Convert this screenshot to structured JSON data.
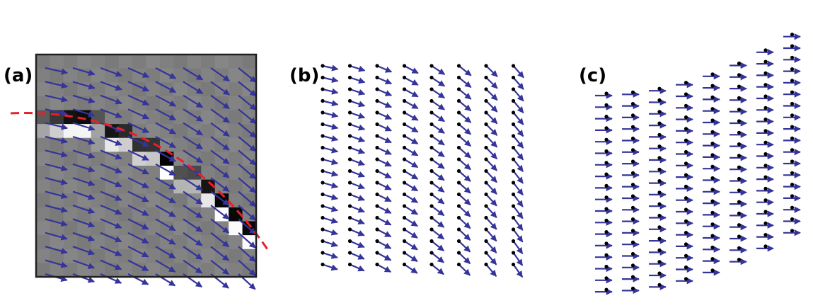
{
  "panels": [
    {
      "label": "(a)",
      "description_id": "gradient-field-on-image"
    },
    {
      "label": "(b)",
      "description_id": "vector-grid"
    },
    {
      "label": "(c)",
      "description_id": "warped-vector-grid"
    }
  ],
  "colors": {
    "arrow": "#34349a",
    "dot": "#000000",
    "curve": "#e8202a",
    "frame": "#202020",
    "background_gray": "#808080"
  }
}
